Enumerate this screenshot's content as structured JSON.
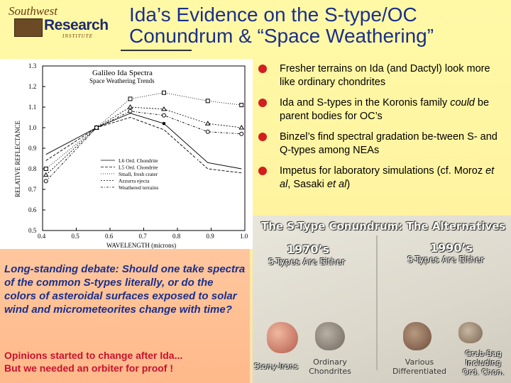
{
  "logo": {
    "line1": "Southwest",
    "line2": "Research",
    "line3": "INSTITUTE"
  },
  "title": {
    "line1": "Ida’s Evidence on the S-type/OC",
    "line2": "Conundrum & “Space Weathering”"
  },
  "bullets": [
    {
      "text": "Fresher terrains on Ida (and Dactyl) look more like ordinary chondrites"
    },
    {
      "before": "Ida and S-types in the Koronis family ",
      "em": "could",
      "after": " be parent bodies for OC’s"
    },
    {
      "text": "Binzel’s find spectral gradation be-tween S- and Q-types among NEAs"
    },
    {
      "before": "Impetus for laboratory simulations (cf. Moroz ",
      "em1": "et al",
      "mid": ", Sasaki ",
      "em2": "et al",
      "after": ")"
    }
  ],
  "debate": "Long-standing debate:  Should one take spectra of the common S-types literally, or do the colors of asteroidal surfaces exposed to solar wind and micrometeorites change with time?",
  "opinions": {
    "line1": "Opinions started to change after Ida...",
    "line2": "But we needed an orbiter for proof !"
  },
  "photo": {
    "heading": "The S-Type Conundrum: The Alternatives",
    "left_era": "1970’s",
    "left_sub": "S-Types Are Either",
    "right_era": "1990’s",
    "right_sub": "S-Types Are Either",
    "label_stony": "Stony-Irons",
    "label_ord1": "Ordinary",
    "label_ord2": "Chondrites",
    "label_var1": "Various",
    "label_var2": "Differentiated",
    "label_grab1": "Grab-Bag",
    "label_grab2": "Including",
    "label_grab3": "Ord. Chon."
  },
  "chart_data": {
    "type": "line",
    "title": "Galileo Ida Spectra",
    "subtitle": "Space Weathering Trends",
    "xlabel": "WAVELENGTH (microns)",
    "ylabel": "RELATIVE REFLECTANCE",
    "xlim": [
      0.4,
      1.0
    ],
    "ylim": [
      0.5,
      1.3
    ],
    "xticks": [
      "0.4",
      "0.5",
      "0.6",
      "0.7",
      "0.8",
      "0.9",
      "1.0"
    ],
    "yticks": [
      "0.5",
      "0.6",
      "0.7",
      "0.8",
      "0.9",
      "1.0",
      "1.1",
      "1.2",
      "1.3"
    ],
    "x": [
      0.41,
      0.56,
      0.66,
      0.76,
      0.89,
      0.99
    ],
    "series": [
      {
        "name": "L6 Ord. Chondrite",
        "values": [
          0.87,
          1.0,
          1.07,
          1.02,
          0.83,
          0.8
        ],
        "style": "solid"
      },
      {
        "name": "L5 Ord. Chondrite",
        "values": [
          0.84,
          1.0,
          1.05,
          0.99,
          0.8,
          0.78
        ],
        "style": "dash"
      },
      {
        "name": "Small, fresh crater",
        "values": [
          0.8,
          1.0,
          1.14,
          1.17,
          1.13,
          1.11
        ],
        "style": "square"
      },
      {
        "name": "Azzurra ejecta",
        "values": [
          0.77,
          1.0,
          1.1,
          1.09,
          1.02,
          1.0
        ],
        "style": "triangle"
      },
      {
        "name": "Weathered terrains",
        "values": [
          0.74,
          1.0,
          1.08,
          1.06,
          0.98,
          0.97
        ],
        "style": "circle"
      }
    ]
  },
  "colors": {
    "title": "#1b2f8a",
    "bullet_dot": "#d41d1d",
    "opinions": "#c8102e",
    "debate": "#1b2f8a"
  }
}
